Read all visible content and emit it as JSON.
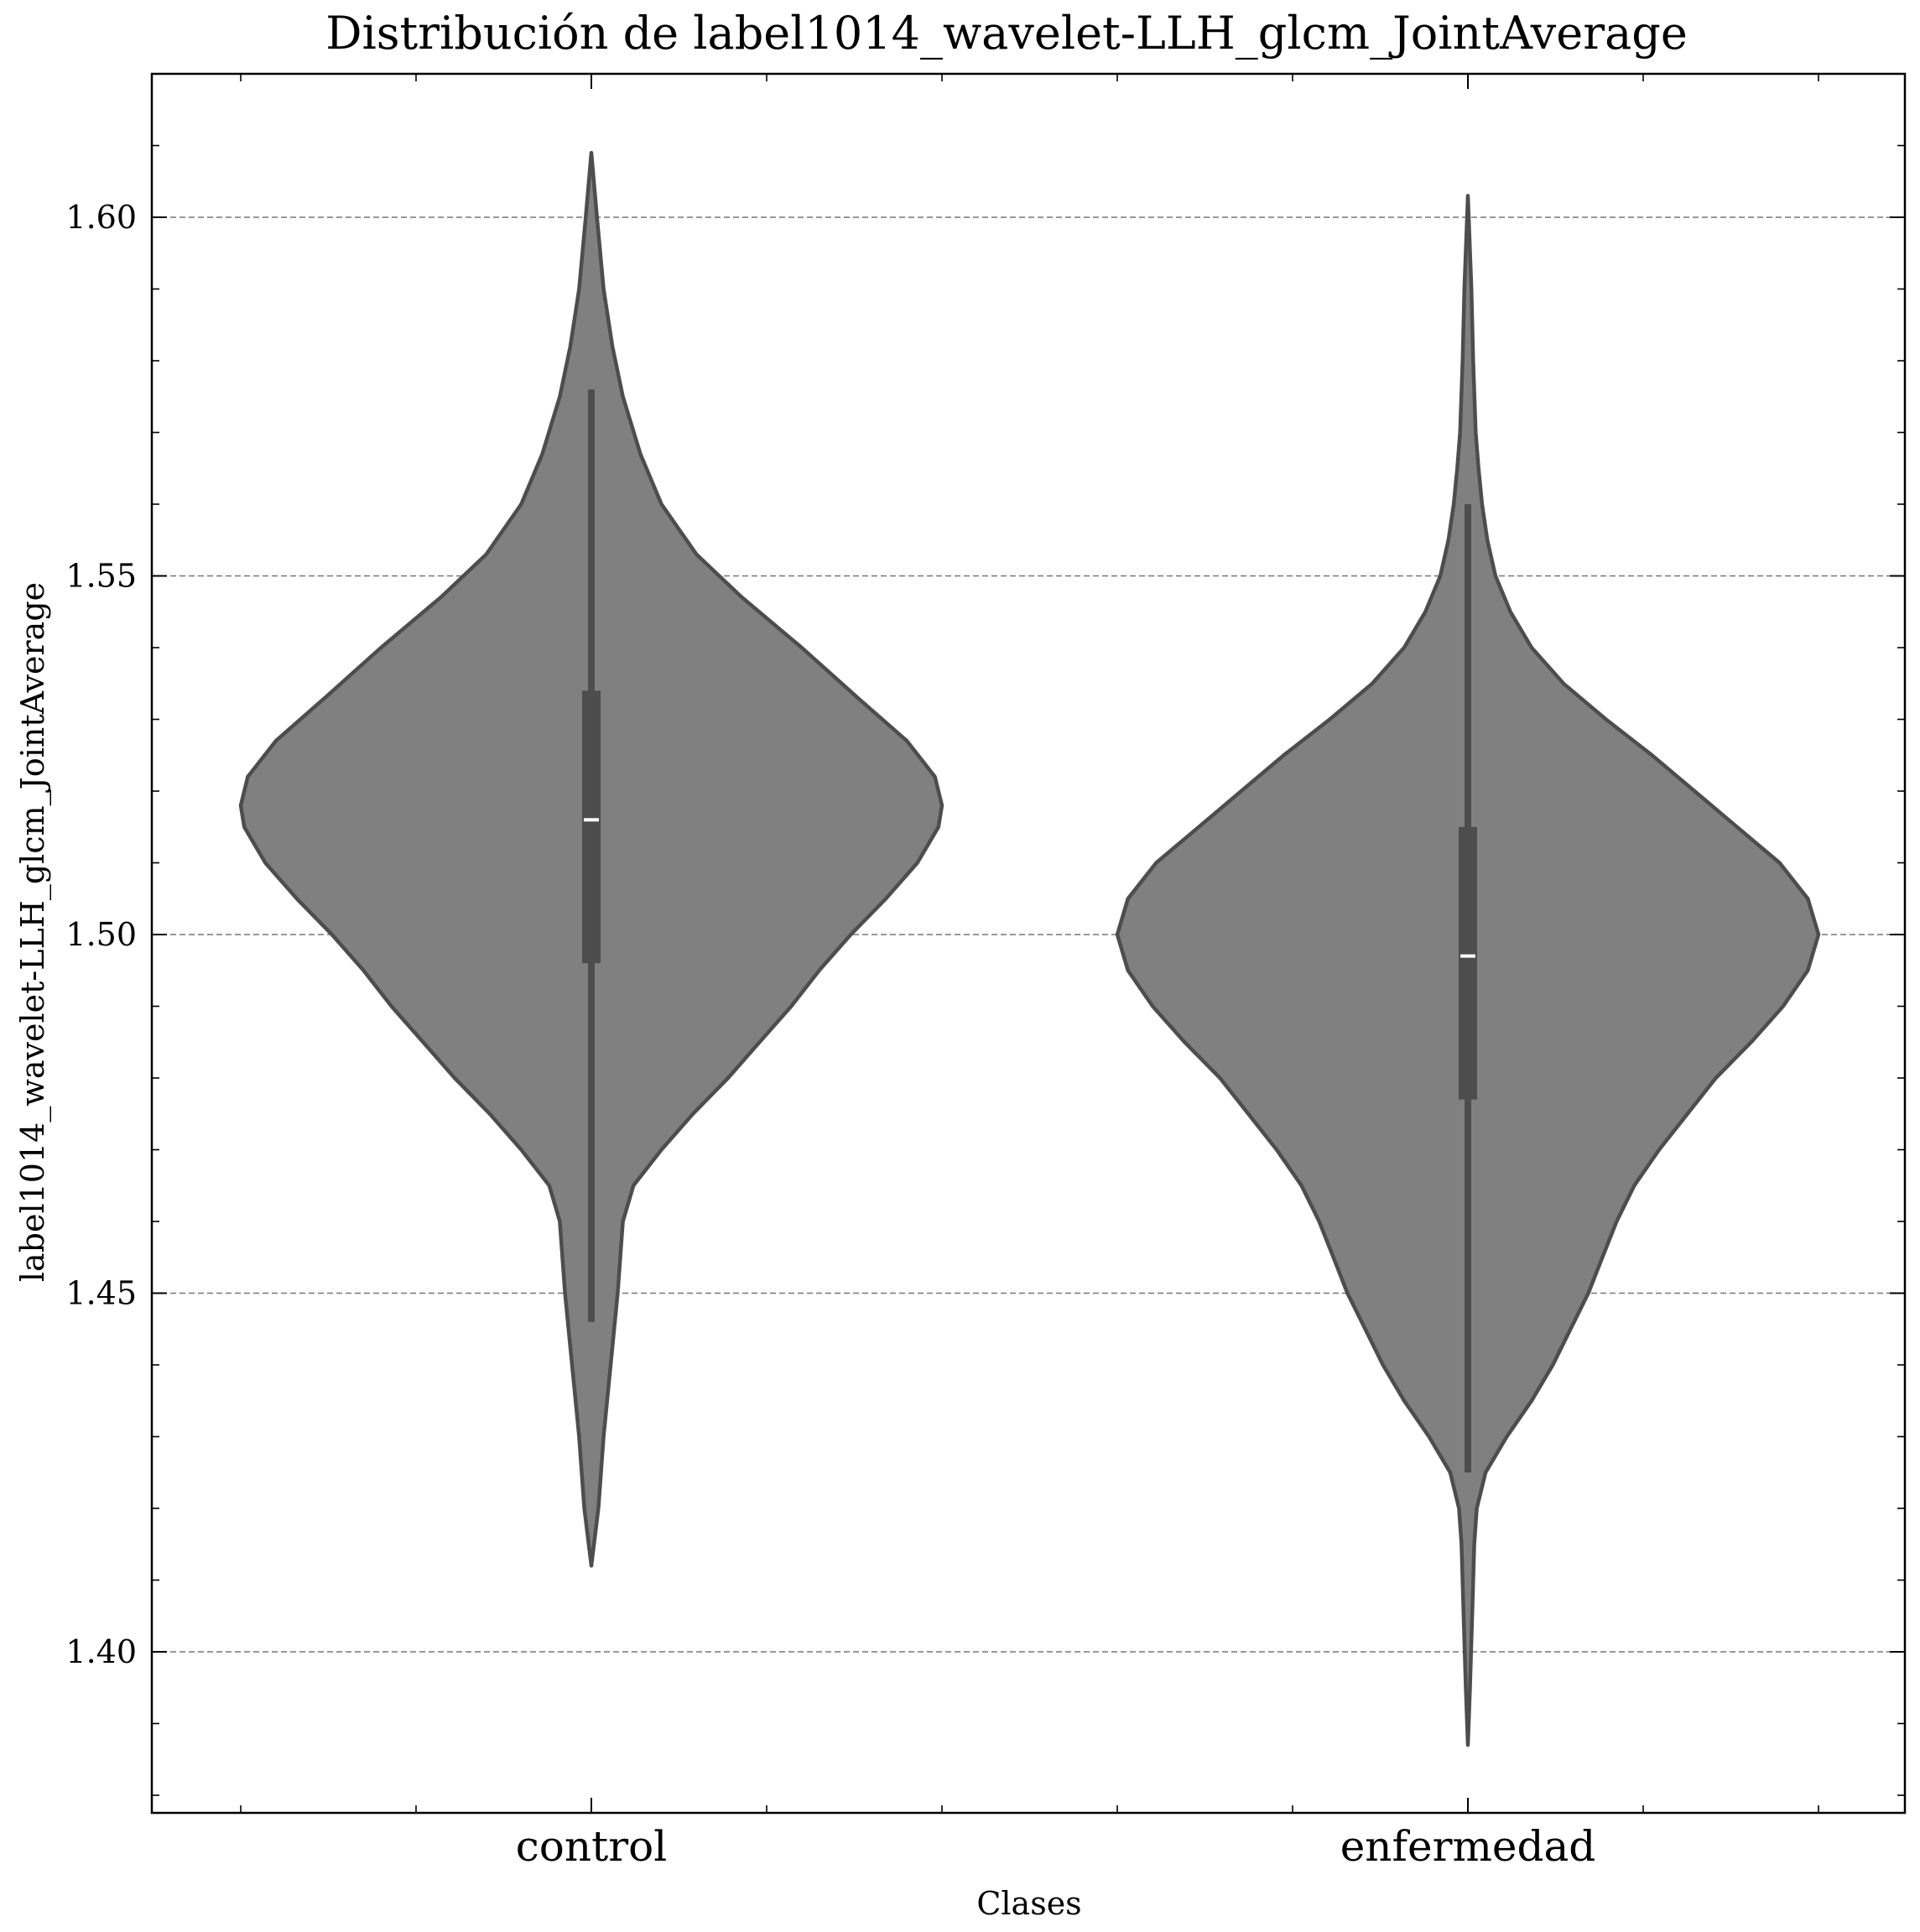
{
  "chart_data": {
    "type": "violin",
    "title": "Distribución de label1014_wavelet-LLH_glcm_JointAverage",
    "xlabel": "Clases",
    "ylabel": "label1014_wavelet-LLH_glcm_JointAverage",
    "categories": [
      "control",
      "enfermedad"
    ],
    "ylim": [
      1.377,
      1.62
    ],
    "yticks": [
      1.4,
      1.45,
      1.5,
      1.55,
      1.6
    ],
    "ytick_labels": [
      "1.40",
      "1.45",
      "1.50",
      "1.55",
      "1.60"
    ],
    "grid": "horizontal dashed",
    "fill_color": "#808080",
    "edge_color": "#4d4d4d",
    "median_color": "#ffffff",
    "series": [
      {
        "name": "control",
        "min": 1.412,
        "max": 1.609,
        "whisker_low": 1.446,
        "whisker_high": 1.576,
        "q1": 1.496,
        "median": 1.516,
        "q3": 1.534,
        "density_profile": [
          [
            1.412,
            0.0
          ],
          [
            1.42,
            0.02
          ],
          [
            1.43,
            0.035
          ],
          [
            1.44,
            0.055
          ],
          [
            1.45,
            0.075
          ],
          [
            1.46,
            0.09
          ],
          [
            1.465,
            0.12
          ],
          [
            1.47,
            0.2
          ],
          [
            1.475,
            0.29
          ],
          [
            1.48,
            0.39
          ],
          [
            1.485,
            0.48
          ],
          [
            1.49,
            0.57
          ],
          [
            1.495,
            0.65
          ],
          [
            1.5,
            0.74
          ],
          [
            1.505,
            0.84
          ],
          [
            1.51,
            0.93
          ],
          [
            1.515,
            0.99
          ],
          [
            1.518,
            1.0
          ],
          [
            1.522,
            0.98
          ],
          [
            1.527,
            0.9
          ],
          [
            1.533,
            0.76
          ],
          [
            1.54,
            0.6
          ],
          [
            1.547,
            0.43
          ],
          [
            1.553,
            0.3
          ],
          [
            1.56,
            0.2
          ],
          [
            1.567,
            0.14
          ],
          [
            1.575,
            0.09
          ],
          [
            1.582,
            0.06
          ],
          [
            1.59,
            0.035
          ],
          [
            1.6,
            0.016
          ],
          [
            1.609,
            0.0
          ]
        ]
      },
      {
        "name": "enfermedad",
        "min": 1.387,
        "max": 1.603,
        "whisker_low": 1.425,
        "whisker_high": 1.56,
        "q1": 1.477,
        "median": 1.497,
        "q3": 1.515,
        "density_profile": [
          [
            1.387,
            0.0
          ],
          [
            1.395,
            0.006
          ],
          [
            1.405,
            0.012
          ],
          [
            1.415,
            0.018
          ],
          [
            1.42,
            0.025
          ],
          [
            1.425,
            0.05
          ],
          [
            1.43,
            0.11
          ],
          [
            1.435,
            0.18
          ],
          [
            1.44,
            0.24
          ],
          [
            1.445,
            0.29
          ],
          [
            1.45,
            0.34
          ],
          [
            1.455,
            0.38
          ],
          [
            1.46,
            0.42
          ],
          [
            1.465,
            0.47
          ],
          [
            1.47,
            0.54
          ],
          [
            1.475,
            0.62
          ],
          [
            1.48,
            0.7
          ],
          [
            1.485,
            0.8
          ],
          [
            1.49,
            0.89
          ],
          [
            1.495,
            0.96
          ],
          [
            1.5,
            0.99
          ],
          [
            1.505,
            0.96
          ],
          [
            1.51,
            0.88
          ],
          [
            1.515,
            0.76
          ],
          [
            1.52,
            0.64
          ],
          [
            1.525,
            0.52
          ],
          [
            1.53,
            0.39
          ],
          [
            1.535,
            0.27
          ],
          [
            1.54,
            0.18
          ],
          [
            1.545,
            0.12
          ],
          [
            1.55,
            0.078
          ],
          [
            1.555,
            0.055
          ],
          [
            1.56,
            0.04
          ],
          [
            1.565,
            0.03
          ],
          [
            1.57,
            0.022
          ],
          [
            1.58,
            0.015
          ],
          [
            1.59,
            0.01
          ],
          [
            1.603,
            0.0
          ]
        ]
      }
    ]
  }
}
